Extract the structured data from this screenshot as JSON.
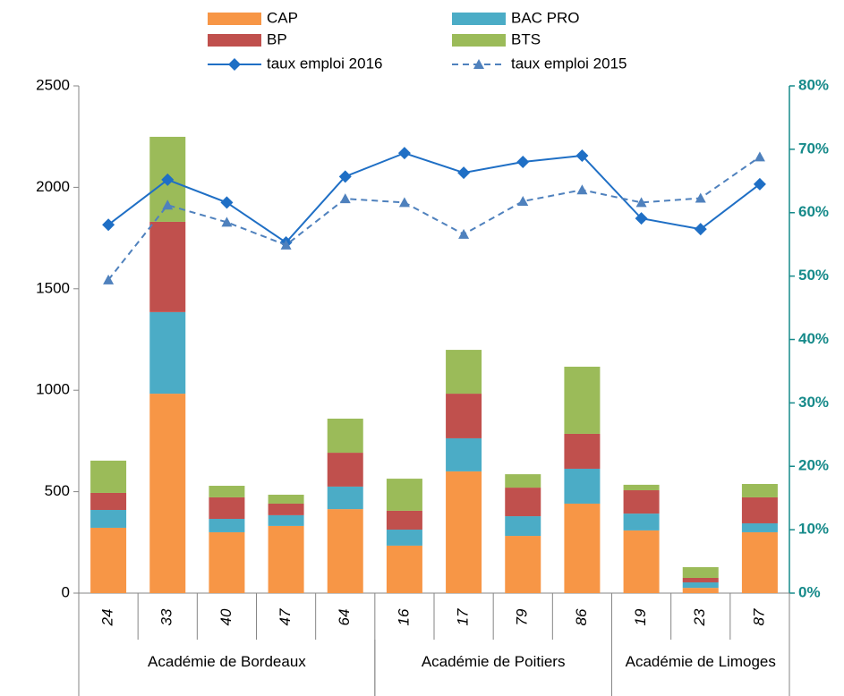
{
  "chart_data": {
    "type": "bar",
    "stacked": true,
    "groups": [
      {
        "name": "Académie de Bordeaux",
        "categories": [
          "24",
          "33",
          "40",
          "47",
          "64"
        ]
      },
      {
        "name": "Académie de Poitiers",
        "categories": [
          "16",
          "17",
          "79",
          "86"
        ]
      },
      {
        "name": "Académie de Limoges",
        "categories": [
          "19",
          "23",
          "87"
        ]
      }
    ],
    "ylim": [
      0,
      2500
    ],
    "yticks": [
      0,
      500,
      1000,
      1500,
      2000,
      2500
    ],
    "y2lim": [
      0,
      80
    ],
    "y2ticks": [
      {
        "value": 0,
        "label": "0%"
      },
      {
        "value": 10,
        "label": "10%"
      },
      {
        "value": 20,
        "label": "20%"
      },
      {
        "value": 30,
        "label": "30%"
      },
      {
        "value": 40,
        "label": "40%"
      },
      {
        "value": 50,
        "label": "50%"
      },
      {
        "value": 60,
        "label": "60%"
      },
      {
        "value": 70,
        "label": "70%"
      },
      {
        "value": 80,
        "label": "80%"
      }
    ],
    "y2color": "#168a8a",
    "series": [
      {
        "name": "CAP",
        "color": "#f79646",
        "type": "bar",
        "values": [
          322,
          983,
          300,
          331,
          414,
          234,
          600,
          282,
          441,
          309,
          26,
          300
        ]
      },
      {
        "name": "BAC PRO",
        "color": "#4bacc6",
        "type": "bar",
        "values": [
          88,
          402,
          66,
          53,
          111,
          79,
          163,
          97,
          172,
          83,
          27,
          44
        ]
      },
      {
        "name": "BP",
        "color": "#c0504d",
        "type": "bar",
        "values": [
          84,
          445,
          106,
          57,
          167,
          93,
          220,
          141,
          172,
          115,
          22,
          128
        ]
      },
      {
        "name": "BTS",
        "color": "#9bbb59",
        "type": "bar",
        "values": [
          159,
          419,
          57,
          44,
          168,
          158,
          216,
          66,
          331,
          27,
          53,
          66
        ]
      },
      {
        "name": "taux emploi 2016",
        "color": "#1f6fc5",
        "type": "line",
        "axis": "y2",
        "marker": "diamond",
        "dash": false,
        "values": [
          58.1,
          65.2,
          61.6,
          55.3,
          65.7,
          69.4,
          66.3,
          68.0,
          69.0,
          59.1,
          57.4,
          64.5
        ]
      },
      {
        "name": "taux emploi 2015",
        "color": "#4f81bd",
        "type": "line",
        "axis": "y2",
        "marker": "triangle",
        "dash": true,
        "values": [
          49.4,
          61.2,
          58.5,
          54.9,
          62.2,
          61.6,
          56.6,
          61.8,
          63.6,
          61.6,
          62.3,
          68.8
        ]
      }
    ]
  }
}
